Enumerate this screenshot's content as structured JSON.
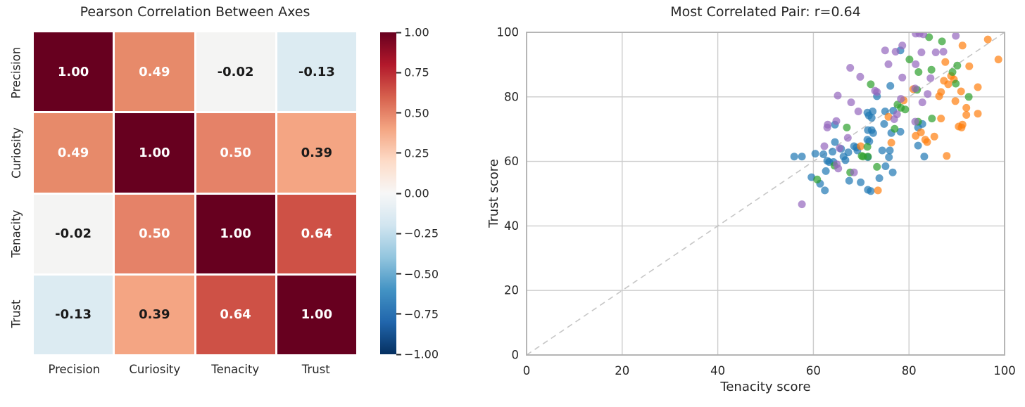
{
  "figure": {
    "background": "#ffffff"
  },
  "chart_data": [
    {
      "type": "heatmap",
      "title": "Pearson Correlation Between Axes",
      "categories": [
        "Precision",
        "Curiosity",
        "Tenacity",
        "Trust"
      ],
      "matrix": [
        [
          1.0,
          0.49,
          -0.02,
          -0.13
        ],
        [
          0.49,
          1.0,
          0.5,
          0.39
        ],
        [
          -0.02,
          0.5,
          1.0,
          0.64
        ],
        [
          -0.13,
          0.39,
          0.64,
          1.0
        ]
      ],
      "cell_colors": [
        [
          "#67001f",
          "#e78a6a",
          "#f4f4f3",
          "#dcebf2"
        ],
        [
          "#e78a6a",
          "#67001f",
          "#e58268",
          "#f4a583"
        ],
        [
          "#f4f4f3",
          "#e58268",
          "#67001f",
          "#ce5146"
        ],
        [
          "#dcebf2",
          "#f4a583",
          "#ce5146",
          "#67001f"
        ]
      ],
      "colormap": "RdBu_r",
      "vmin": -1,
      "vmax": 1,
      "colorbar": {
        "ticks": [
          "1.00",
          "0.75",
          "0.50",
          "0.25",
          "0.00",
          "−0.25",
          "−0.50",
          "−0.75",
          "−1.00"
        ],
        "gradient": [
          "#67001f",
          "#b2182b",
          "#d6604d",
          "#f4a582",
          "#fddbc7",
          "#f7f7f7",
          "#d1e5f0",
          "#92c5de",
          "#4393c4",
          "#2166ac",
          "#053061"
        ]
      }
    },
    {
      "type": "scatter",
      "title": "Most Correlated Pair: r=0.64",
      "xlabel": "Tenacity score",
      "ylabel": "Trust score",
      "xlim": [
        0,
        100
      ],
      "ylim": [
        0,
        100
      ],
      "xticks": [
        0,
        20,
        40,
        60,
        80,
        100
      ],
      "yticks": [
        0,
        20,
        40,
        60,
        80,
        100
      ],
      "grid": true,
      "grid_color": "#cccccc",
      "spine_color": "#b0b0b0",
      "identity_line": {
        "from": [
          0,
          0
        ],
        "to": [
          100,
          100
        ],
        "style": "dashed",
        "color": "#c6c6c6"
      },
      "marker": {
        "radius": 5.5,
        "opacity": 0.7
      },
      "series": [
        {
          "name": "group-blue",
          "color": "#1f77b4",
          "points": [
            [
              73.3,
              80.2
            ],
            [
              78.2,
              94.4
            ],
            [
              76.1,
              83.4
            ],
            [
              75.0,
              75.5
            ],
            [
              72.4,
              75.5
            ],
            [
              71.3,
              75.1
            ],
            [
              71.6,
              74.2
            ],
            [
              72.2,
              73.5
            ],
            [
              76.7,
              75.7
            ],
            [
              74.8,
              71.6
            ],
            [
              82.8,
              71.6
            ],
            [
              64.5,
              71.4
            ],
            [
              71.4,
              69.7
            ],
            [
              72.2,
              69.7
            ],
            [
              72.5,
              68.8
            ],
            [
              78.2,
              69.2
            ],
            [
              76.3,
              68.8
            ],
            [
              71.3,
              66.7
            ],
            [
              71.7,
              66.2
            ],
            [
              64.5,
              66.0
            ],
            [
              68.5,
              64.7
            ],
            [
              69.0,
              64.3
            ],
            [
              69.2,
              63.4
            ],
            [
              65.8,
              63.9
            ],
            [
              67.3,
              62.8
            ],
            [
              64.0,
              63.0
            ],
            [
              60.4,
              62.4
            ],
            [
              56.0,
              61.5
            ],
            [
              57.6,
              61.5
            ],
            [
              62.1,
              62.2
            ],
            [
              74.4,
              63.4
            ],
            [
              76.0,
              63.4
            ],
            [
              71.4,
              61.3
            ],
            [
              75.8,
              61.3
            ],
            [
              66.3,
              61.5
            ],
            [
              66.7,
              60.4
            ],
            [
              62.9,
              60.2
            ],
            [
              63.3,
              59.8
            ],
            [
              64.2,
              59.8
            ],
            [
              81.9,
              70.5
            ],
            [
              81.9,
              64.9
            ],
            [
              83.2,
              61.5
            ],
            [
              62.6,
              57.0
            ],
            [
              59.6,
              55.1
            ],
            [
              61.4,
              53.1
            ],
            [
              67.5,
              54.0
            ],
            [
              69.9,
              53.5
            ],
            [
              73.8,
              54.8
            ],
            [
              76.6,
              56.6
            ],
            [
              75.1,
              58.5
            ],
            [
              62.4,
              51.0
            ],
            [
              71.4,
              51.2
            ],
            [
              72.0,
              50.8
            ]
          ]
        },
        {
          "name": "group-orange",
          "color": "#ff7f0e",
          "points": [
            [
              96.5,
              97.8
            ],
            [
              91.2,
              95.9
            ],
            [
              98.7,
              91.6
            ],
            [
              87.6,
              90.8
            ],
            [
              92.6,
              89.5
            ],
            [
              88.8,
              86.5
            ],
            [
              89.4,
              85.4
            ],
            [
              87.3,
              85.0
            ],
            [
              88.2,
              83.9
            ],
            [
              94.4,
              83.0
            ],
            [
              80.9,
              82.4
            ],
            [
              86.7,
              81.5
            ],
            [
              90.9,
              81.7
            ],
            [
              86.3,
              80.2
            ],
            [
              78.9,
              78.9
            ],
            [
              89.7,
              78.7
            ],
            [
              92.0,
              76.6
            ],
            [
              94.4,
              74.8
            ],
            [
              92.0,
              74.4
            ],
            [
              75.7,
              73.8
            ],
            [
              86.7,
              73.3
            ],
            [
              91.2,
              71.4
            ],
            [
              90.4,
              70.8
            ],
            [
              91.0,
              70.5
            ],
            [
              82.5,
              69.0
            ],
            [
              81.4,
              67.9
            ],
            [
              85.3,
              67.7
            ],
            [
              83.4,
              66.7
            ],
            [
              83.8,
              66.0
            ],
            [
              76.3,
              65.8
            ],
            [
              69.9,
              64.7
            ],
            [
              87.9,
              61.7
            ],
            [
              73.5,
              51.0
            ]
          ]
        },
        {
          "name": "group-green",
          "color": "#2ca02c",
          "points": [
            [
              84.2,
              98.5
            ],
            [
              86.9,
              97.2
            ],
            [
              80.1,
              91.6
            ],
            [
              90.1,
              89.7
            ],
            [
              84.7,
              88.4
            ],
            [
              82.0,
              87.7
            ],
            [
              89.1,
              87.7
            ],
            [
              89.8,
              84.1
            ],
            [
              72.0,
              83.9
            ],
            [
              81.7,
              82.2
            ],
            [
              92.5,
              80.0
            ],
            [
              77.6,
              77.6
            ],
            [
              78.3,
              76.6
            ],
            [
              79.2,
              76.1
            ],
            [
              84.8,
              73.3
            ],
            [
              81.9,
              72.3
            ],
            [
              67.0,
              70.5
            ],
            [
              77.0,
              70.1
            ],
            [
              71.3,
              64.5
            ],
            [
              70.1,
              61.7
            ],
            [
              70.4,
              61.5
            ],
            [
              71.4,
              61.5
            ],
            [
              64.4,
              58.7
            ],
            [
              73.3,
              58.3
            ],
            [
              67.7,
              56.6
            ],
            [
              60.8,
              54.4
            ]
          ]
        },
        {
          "name": "group-purple",
          "color": "#9467bd",
          "points": [
            [
              81.4,
              99.6
            ],
            [
              82.2,
              99.6
            ],
            [
              83.0,
              99.4
            ],
            [
              89.8,
              98.9
            ],
            [
              78.6,
              95.9
            ],
            [
              75.0,
              94.4
            ],
            [
              77.2,
              94.0
            ],
            [
              87.2,
              94.0
            ],
            [
              82.6,
              93.8
            ],
            [
              85.6,
              93.8
            ],
            [
              75.7,
              90.1
            ],
            [
              81.4,
              90.1
            ],
            [
              67.7,
              89.0
            ],
            [
              69.8,
              86.2
            ],
            [
              78.6,
              86.0
            ],
            [
              84.5,
              85.8
            ],
            [
              81.3,
              82.6
            ],
            [
              72.9,
              81.9
            ],
            [
              73.3,
              81.5
            ],
            [
              83.9,
              80.9
            ],
            [
              65.1,
              80.4
            ],
            [
              78.3,
              79.4
            ],
            [
              67.9,
              78.3
            ],
            [
              82.8,
              78.3
            ],
            [
              69.4,
              75.5
            ],
            [
              77.5,
              74.6
            ],
            [
              76.9,
              73.1
            ],
            [
              64.8,
              72.5
            ],
            [
              81.3,
              72.3
            ],
            [
              63.0,
              71.4
            ],
            [
              62.9,
              70.5
            ],
            [
              67.2,
              67.3
            ],
            [
              62.3,
              64.7
            ],
            [
              65.5,
              64.1
            ],
            [
              64.9,
              59.1
            ],
            [
              65.2,
              57.8
            ],
            [
              68.5,
              56.6
            ],
            [
              57.6,
              46.7
            ]
          ]
        }
      ]
    }
  ]
}
